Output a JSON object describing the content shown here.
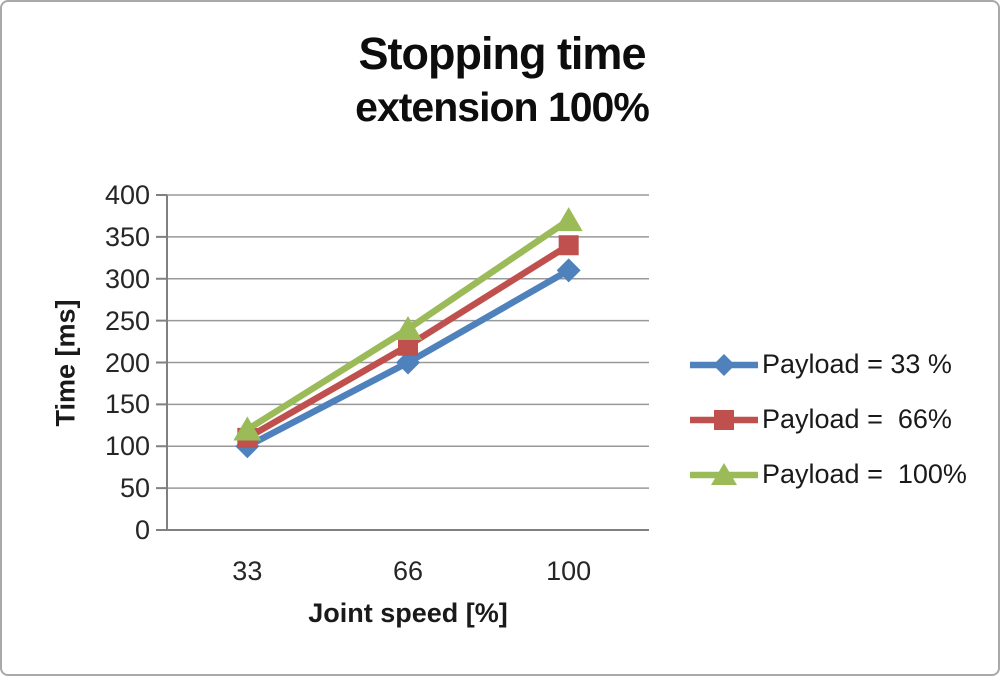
{
  "page": {
    "background": "#ffffff",
    "frame_border_color": "#a9a9a9"
  },
  "chart_data": {
    "type": "line",
    "title": "Stopping time",
    "subtitle": "extension 100%",
    "xlabel": "Joint speed [%]",
    "ylabel": "Time [ms]",
    "categories": [
      "33",
      "66",
      "100"
    ],
    "series": [
      {
        "name": "Payload = 33 %",
        "color": "#4F81BD",
        "marker": "diamond",
        "values": [
          100,
          200,
          310
        ]
      },
      {
        "name": "Payload =  66%",
        "color": "#C0504D",
        "marker": "square",
        "values": [
          110,
          220,
          340
        ]
      },
      {
        "name": "Payload =  100%",
        "color": "#9BBB59",
        "marker": "triangle",
        "values": [
          120,
          240,
          370
        ]
      }
    ],
    "ylim": [
      0,
      400
    ],
    "ytick_step": 50,
    "yticks": [
      400,
      350,
      300,
      250,
      200,
      150,
      100,
      50,
      0
    ],
    "grid": true,
    "legend_position": "right",
    "axis_color": "#808080",
    "grid_color": "#999999",
    "text_color": "#262626"
  }
}
